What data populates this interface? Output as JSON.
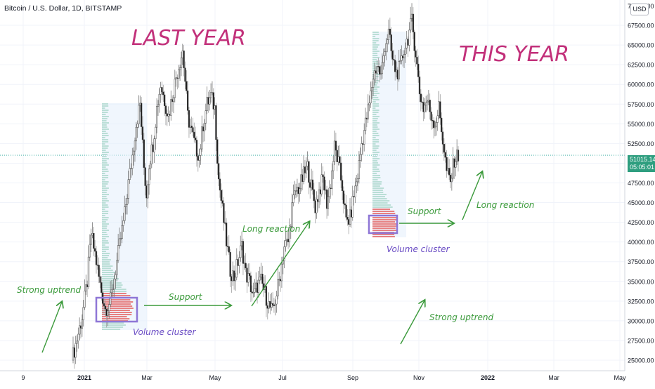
{
  "header": {
    "title": "Bitcoin / U.S. Dollar, 1D, BITSTAMP",
    "currency": "USD"
  },
  "price_tag": {
    "price": "51015.14",
    "countdown": "05:05:01"
  },
  "colors": {
    "up": "#26a69a",
    "down": "#ef5350",
    "annotation_green": "#3b9a3b",
    "annotation_purple": "#6a4cc4",
    "title_pink": "#c2307a",
    "box": "#8e76d6"
  },
  "annotations": {
    "last_year": "LAST YEAR",
    "this_year": "THIS YEAR",
    "strong_uptrend_1": "Strong uptrend",
    "support_1": "Support",
    "volume_cluster_1": "Volume cluster",
    "long_reaction_1": "Long reaction",
    "support_2": "Support",
    "volume_cluster_2": "Volume cluster",
    "long_reaction_2": "Long reaction",
    "strong_uptrend_2": "Strong uptrend"
  },
  "chart_data": {
    "type": "candlestick",
    "title": "Bitcoin / U.S. Dollar, 1D, BITSTAMP",
    "x_ticks": [
      "9",
      "2021",
      "Mar",
      "May",
      "Jul",
      "Sep",
      "Nov",
      "2022",
      "Mar",
      "May"
    ],
    "y_axis_label_top": "70000.00",
    "y_ticks": [
      "67500.00",
      "65000.00",
      "62500.00",
      "60000.00",
      "57500.00",
      "55000.00",
      "52500.00",
      "50000.00",
      "47500.00",
      "45000.00",
      "42500.00",
      "40000.00",
      "37500.00",
      "35000.00",
      "32500.00",
      "30000.00",
      "27500.00",
      "25000.00"
    ],
    "ylim": [
      25000,
      70000
    ],
    "last_price": 51015.14,
    "grid": true,
    "series_path": [
      [
        0,
        25000
      ],
      [
        3,
        27000
      ],
      [
        8,
        30500
      ],
      [
        12,
        35000
      ],
      [
        15,
        41000
      ],
      [
        18,
        38500
      ],
      [
        22,
        34500
      ],
      [
        26,
        31500
      ],
      [
        30,
        32500
      ],
      [
        34,
        36500
      ],
      [
        38,
        40500
      ],
      [
        41,
        43500
      ],
      [
        44,
        47500
      ],
      [
        47,
        51000
      ],
      [
        50,
        55000
      ],
      [
        53,
        57500
      ],
      [
        56,
        49500
      ],
      [
        58,
        46000
      ],
      [
        60,
        50000
      ],
      [
        63,
        52500
      ],
      [
        66,
        57000
      ],
      [
        69,
        60000
      ],
      [
        72,
        58000
      ],
      [
        75,
        56000
      ],
      [
        78,
        58500
      ],
      [
        81,
        61000
      ],
      [
        84,
        63000
      ],
      [
        86,
        64300
      ],
      [
        88,
        60500
      ],
      [
        90,
        56000
      ],
      [
        93,
        54000
      ],
      [
        96,
        52000
      ],
      [
        99,
        51000
      ],
      [
        102,
        55000
      ],
      [
        105,
        57500
      ],
      [
        108,
        58500
      ],
      [
        111,
        57000
      ],
      [
        114,
        48000
      ],
      [
        117,
        44000
      ],
      [
        120,
        40000
      ],
      [
        123,
        36500
      ],
      [
        126,
        35500
      ],
      [
        129,
        37500
      ],
      [
        132,
        39500
      ],
      [
        135,
        36000
      ],
      [
        138,
        35000
      ],
      [
        141,
        33000
      ],
      [
        144,
        34500
      ],
      [
        147,
        35000
      ],
      [
        150,
        33500
      ],
      [
        153,
        32000
      ],
      [
        156,
        31000
      ],
      [
        159,
        33500
      ],
      [
        162,
        36000
      ],
      [
        165,
        39500
      ],
      [
        168,
        40000
      ],
      [
        171,
        44500
      ],
      [
        174,
        46500
      ],
      [
        177,
        47000
      ],
      [
        180,
        48500
      ],
      [
        183,
        49500
      ],
      [
        186,
        47000
      ],
      [
        189,
        44500
      ],
      [
        192,
        46500
      ],
      [
        195,
        48000
      ],
      [
        198,
        45000
      ],
      [
        201,
        47500
      ],
      [
        204,
        52000
      ],
      [
        207,
        50000
      ],
      [
        210,
        47000
      ],
      [
        213,
        42500
      ],
      [
        216,
        43000
      ],
      [
        219,
        46000
      ],
      [
        222,
        48500
      ],
      [
        225,
        52500
      ],
      [
        228,
        55000
      ],
      [
        231,
        57500
      ],
      [
        234,
        61000
      ],
      [
        237,
        62500
      ],
      [
        240,
        61000
      ],
      [
        243,
        65000
      ],
      [
        246,
        66500
      ],
      [
        249,
        63000
      ],
      [
        252,
        61500
      ],
      [
        255,
        62000
      ],
      [
        258,
        64500
      ],
      [
        261,
        66000
      ],
      [
        264,
        68000
      ],
      [
        267,
        64000
      ],
      [
        270,
        59000
      ],
      [
        273,
        57000
      ],
      [
        276,
        58000
      ],
      [
        279,
        56000
      ],
      [
        282,
        55000
      ],
      [
        285,
        57000
      ],
      [
        288,
        53000
      ],
      [
        291,
        49000
      ],
      [
        294,
        47500
      ],
      [
        297,
        50500
      ],
      [
        300,
        51015
      ]
    ]
  }
}
